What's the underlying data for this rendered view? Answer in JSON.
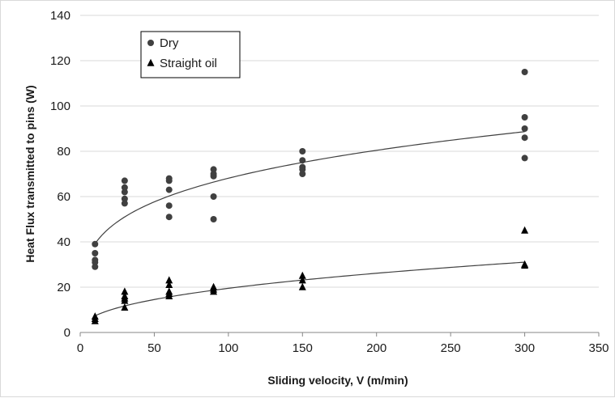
{
  "chart_data": {
    "type": "scatter",
    "title": "",
    "xlabel": "Sliding velocity, V (m/min)",
    "ylabel": "Heat Flux transmitted to pins (W)",
    "xlim": [
      0,
      350
    ],
    "ylim": [
      0,
      140
    ],
    "x_ticks": [
      "0",
      "50",
      "100",
      "150",
      "200",
      "250",
      "300",
      "350"
    ],
    "y_ticks": [
      "0",
      "20",
      "40",
      "60",
      "80",
      "100",
      "120",
      "140"
    ],
    "grid": "horizontal",
    "legend_position": "top-left",
    "series": [
      {
        "name": "Dry",
        "marker": "circle",
        "color": "#404040",
        "points": [
          [
            10,
            39
          ],
          [
            10,
            35
          ],
          [
            10,
            32
          ],
          [
            10,
            31
          ],
          [
            10,
            29
          ],
          [
            30,
            67
          ],
          [
            30,
            64
          ],
          [
            30,
            62
          ],
          [
            30,
            59
          ],
          [
            30,
            57
          ],
          [
            60,
            68
          ],
          [
            60,
            67
          ],
          [
            60,
            63
          ],
          [
            60,
            56
          ],
          [
            60,
            51
          ],
          [
            90,
            72
          ],
          [
            90,
            70
          ],
          [
            90,
            69
          ],
          [
            90,
            60
          ],
          [
            90,
            50
          ],
          [
            150,
            80
          ],
          [
            150,
            76
          ],
          [
            150,
            73
          ],
          [
            150,
            72
          ],
          [
            150,
            70
          ],
          [
            300,
            115
          ],
          [
            300,
            95
          ],
          [
            300,
            90
          ],
          [
            300,
            86
          ],
          [
            300,
            77
          ]
        ],
        "trendline": {
          "type": "power",
          "coef": 22.55,
          "exp": 0.24
        }
      },
      {
        "name": "Straight oil",
        "marker": "triangle",
        "color": "#000000",
        "points": [
          [
            10,
            7
          ],
          [
            10,
            6
          ],
          [
            10,
            5
          ],
          [
            30,
            18
          ],
          [
            30,
            16
          ],
          [
            30,
            15
          ],
          [
            30,
            14
          ],
          [
            30,
            11
          ],
          [
            60,
            23
          ],
          [
            60,
            21
          ],
          [
            60,
            18
          ],
          [
            60,
            17
          ],
          [
            60,
            16
          ],
          [
            90,
            20
          ],
          [
            90,
            19
          ],
          [
            90,
            18
          ],
          [
            150,
            25
          ],
          [
            150,
            23
          ],
          [
            150,
            20
          ],
          [
            300,
            45
          ],
          [
            300,
            30
          ],
          [
            300,
            29.5
          ]
        ],
        "trendline": {
          "type": "power",
          "coef": 2.78,
          "exp": 0.423
        }
      }
    ]
  }
}
